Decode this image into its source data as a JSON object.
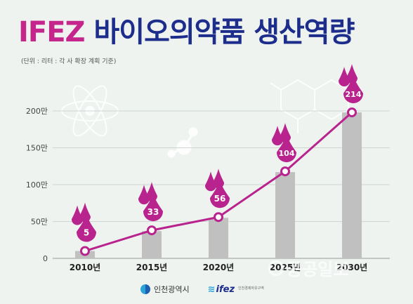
{
  "header": {
    "brand": "IFEZ",
    "title": "바이오의약품 생산역량",
    "unit_note": "(단위 : 리터 : 각 사 확장 계획 기준)"
  },
  "chart_data": {
    "type": "bar",
    "categories": [
      "2010년",
      "2015년",
      "2020년",
      "2025년",
      "2030년"
    ],
    "values": [
      5,
      33,
      56,
      104,
      214
    ],
    "bar_values_axis": [
      10,
      37,
      55,
      117,
      198
    ],
    "line_values_axis": [
      10,
      38,
      56,
      118,
      198
    ],
    "y_ticks": [
      "0",
      "50만",
      "100만",
      "150만",
      "200만"
    ],
    "ylim": [
      0,
      220
    ],
    "grid": true,
    "bar_color": "#c0c0c0",
    "line_color": "#b8238d"
  },
  "footer": {
    "logo1": "인천광역시",
    "logo2": "ifez",
    "logo2_sub": "인천경제자유구역"
  },
  "watermark": "공공일보",
  "colors": {
    "brand": "#c4268c",
    "title": "#1d2d8c",
    "background": "#eef3f0"
  }
}
